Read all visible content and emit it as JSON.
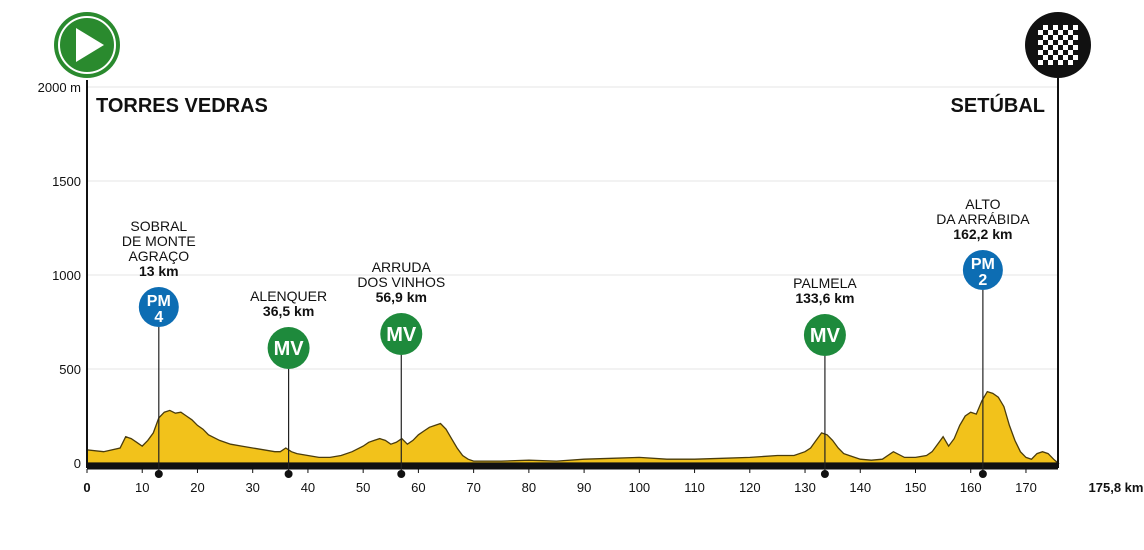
{
  "chart_data": {
    "type": "area",
    "ylabel_unit": "2000 m",
    "xlim": [
      0,
      175.8
    ],
    "ylim": [
      0,
      2000
    ],
    "y_ticks": [
      0,
      500,
      1000,
      1500
    ],
    "y_ticks_labels": [
      "0",
      "500",
      "1000",
      "1500"
    ],
    "y_top_label": "2000 m",
    "x_ticks": [
      0,
      10,
      20,
      30,
      40,
      50,
      60,
      70,
      80,
      90,
      100,
      110,
      120,
      130,
      140,
      150,
      160,
      170
    ],
    "x_ticks_labels": [
      "0",
      "10",
      "20",
      "30",
      "40",
      "50",
      "60",
      "70",
      "80",
      "90",
      "100",
      "110",
      "120",
      "130",
      "140",
      "150",
      "160",
      "170"
    ],
    "x_end_label": "175,8 km",
    "grid": true,
    "start_city": "TORRES VEDRAS",
    "finish_city": "SETÚBAL",
    "icons": {
      "start": "start-play-icon",
      "finish": "finish-checkered-flag-icon"
    },
    "colors": {
      "profile_fill": "#f2c21b",
      "profile_line": "#4a3c0c",
      "pm": "#0d6db3",
      "mv": "#1e8a3c",
      "start": "#2a8a2e"
    },
    "profile": {
      "x": [
        0,
        3,
        6,
        7,
        8,
        9,
        10,
        11,
        12,
        13,
        14,
        15,
        16,
        17,
        18,
        19,
        20,
        21,
        22,
        24,
        26,
        28,
        30,
        32,
        34,
        35,
        36,
        37,
        38,
        40,
        42,
        44,
        46,
        48,
        50,
        51,
        52,
        53,
        54,
        55,
        56,
        57,
        58,
        59,
        60,
        61,
        62,
        63,
        64,
        65,
        66,
        67,
        68,
        69,
        70,
        75,
        80,
        85,
        90,
        95,
        100,
        105,
        110,
        115,
        120,
        125,
        128,
        130,
        131,
        132,
        133,
        134,
        135,
        136,
        137,
        138,
        140,
        142,
        144,
        146,
        148,
        150,
        152,
        153,
        154,
        155,
        156,
        157,
        158,
        159,
        160,
        161,
        162,
        163,
        164,
        165,
        166,
        167,
        168,
        169,
        170,
        171,
        172,
        173,
        174,
        175,
        175.8
      ],
      "y": [
        70,
        60,
        80,
        140,
        130,
        110,
        90,
        120,
        160,
        240,
        270,
        280,
        265,
        270,
        250,
        230,
        200,
        180,
        150,
        120,
        100,
        90,
        80,
        70,
        60,
        60,
        80,
        60,
        50,
        40,
        30,
        30,
        40,
        60,
        90,
        110,
        120,
        130,
        120,
        100,
        110,
        130,
        100,
        120,
        150,
        170,
        190,
        200,
        210,
        180,
        130,
        80,
        40,
        20,
        10,
        10,
        15,
        10,
        20,
        25,
        30,
        20,
        20,
        25,
        30,
        40,
        40,
        60,
        80,
        120,
        160,
        150,
        120,
        80,
        50,
        40,
        20,
        15,
        20,
        60,
        30,
        30,
        40,
        60,
        100,
        140,
        90,
        130,
        200,
        250,
        270,
        260,
        330,
        380,
        370,
        350,
        300,
        200,
        120,
        60,
        30,
        20,
        50,
        60,
        50,
        20,
        0
      ]
    },
    "waypoints": [
      {
        "km": 13,
        "elev": 270,
        "type": "PM",
        "cat": "4",
        "name_lines": [
          "SOBRAL",
          "DE MONTE",
          "AGRAÇO"
        ],
        "km_label": "13 km"
      },
      {
        "km": 36.5,
        "elev": 60,
        "type": "MV",
        "cat": "",
        "name_lines": [
          "ALENQUER"
        ],
        "km_label": "36,5 km"
      },
      {
        "km": 56.9,
        "elev": 110,
        "type": "MV",
        "cat": "",
        "name_lines": [
          "ARRUDA",
          "DOS VINHOS"
        ],
        "km_label": "56,9 km"
      },
      {
        "km": 133.6,
        "elev": 160,
        "type": "MV",
        "cat": "",
        "name_lines": [
          "PALMELA"
        ],
        "km_label": "133,6 km"
      },
      {
        "km": 162.2,
        "elev": 380,
        "type": "PM",
        "cat": "2",
        "name_lines": [
          "ALTO",
          "DA ARRÁBIDA"
        ],
        "km_label": "162,2 km"
      }
    ]
  }
}
